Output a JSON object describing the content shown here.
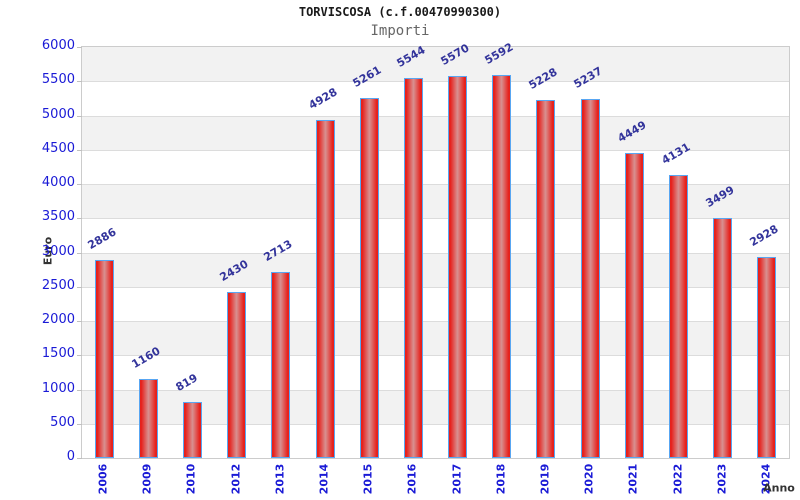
{
  "title": "TORVISCOSA (c.f.00470990300)",
  "subtitle": "Importi",
  "chart_data": {
    "type": "bar",
    "categories": [
      "2006",
      "2009",
      "2010",
      "2012",
      "2013",
      "2014",
      "2015",
      "2016",
      "2017",
      "2018",
      "2019",
      "2020",
      "2021",
      "2022",
      "2023",
      "2024"
    ],
    "values": [
      2886,
      1160,
      819,
      2430,
      2713,
      4928,
      5261,
      5544,
      5570,
      5592,
      5228,
      5237,
      4449,
      4131,
      3499,
      2928
    ],
    "title": "TORVISCOSA (c.f.00470990300)",
    "subtitle": "Importi",
    "xlabel": "Anno",
    "ylabel": "Euro",
    "ylim": [
      0,
      6000
    ],
    "ytick_step": 500,
    "yticks": [
      0,
      500,
      1000,
      1500,
      2000,
      2500,
      3000,
      3500,
      4000,
      4500,
      5000,
      5500,
      6000
    ],
    "grid": true,
    "legend": false,
    "bar_value_labels": true
  },
  "colors": {
    "tick_label_blue": "#1a1ad6",
    "value_label_navy": "#33349b",
    "bar_red_edge": "#e6211c",
    "bar_red_center": "#d89191",
    "bar_border_blue": "#58a6f2",
    "band_gray": "#f2f2f2",
    "band_white": "#ffffff",
    "gridline_gray": "#dcdcdc",
    "plot_border_gray": "#cccccc",
    "title_color": "#1a1a1a",
    "subtitle_color": "#666666",
    "axis_title_color": "#333333"
  }
}
